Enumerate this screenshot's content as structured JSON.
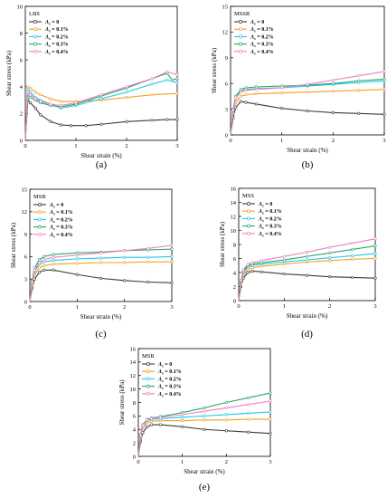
{
  "colors": {
    "0": "#3a3a3a",
    "0.1%": "#f2a020",
    "0.2%": "#22c7e6",
    "0.3%": "#27a86a",
    "0.4%": "#f07ec0"
  },
  "chart_data": [
    {
      "type": "line",
      "label": "LBS",
      "caption": "(a)",
      "xlabel": "Shear strain (%)",
      "ylabel": "Shear stress (kPa)",
      "xlim": [
        0,
        3
      ],
      "ylim": [
        0,
        10
      ],
      "xticks": [
        0,
        1,
        2,
        3
      ],
      "yticks": [
        0,
        2,
        4,
        6,
        8,
        10
      ],
      "series": [
        {
          "name": "A_s = 0",
          "key": "0",
          "x": [
            0,
            0.05,
            0.1,
            0.2,
            0.3,
            0.5,
            0.7,
            0.9,
            1.2,
            1.5,
            2,
            2.5,
            2.8,
            3
          ],
          "y": [
            0,
            3.0,
            2.8,
            2.4,
            1.9,
            1.4,
            1.15,
            1.1,
            1.1,
            1.2,
            1.4,
            1.5,
            1.55,
            1.55
          ]
        },
        {
          "name": "A_s = 0.1%",
          "key": "0.1%",
          "x": [
            0,
            0.05,
            0.1,
            0.2,
            0.3,
            0.5,
            0.7,
            1,
            1.5,
            2,
            2.5,
            3
          ],
          "y": [
            0,
            4.0,
            3.9,
            3.6,
            3.4,
            3.1,
            2.9,
            2.9,
            3.0,
            3.2,
            3.4,
            3.5
          ]
        },
        {
          "name": "A_s = 0.2%",
          "key": "0.2%",
          "x": [
            0,
            0.05,
            0.1,
            0.2,
            0.3,
            0.5,
            0.7,
            1,
            1.5,
            2,
            2.5,
            2.8,
            3
          ],
          "y": [
            0,
            3.8,
            3.6,
            3.2,
            3.0,
            2.7,
            2.4,
            2.6,
            3.1,
            3.6,
            4.2,
            4.5,
            4.3
          ]
        },
        {
          "name": "A_s = 0.3%",
          "key": "0.3%",
          "x": [
            0,
            0.05,
            0.1,
            0.2,
            0.3,
            0.5,
            0.7,
            1,
            1.5,
            2,
            2.5,
            2.8,
            2.9,
            3
          ],
          "y": [
            0,
            3.3,
            3.2,
            3.0,
            2.8,
            2.6,
            2.5,
            2.7,
            3.3,
            3.9,
            4.6,
            5.0,
            4.5,
            4.6
          ]
        },
        {
          "name": "A_s = 0.4%",
          "key": "0.4%",
          "x": [
            0,
            0.05,
            0.1,
            0.2,
            0.3,
            0.5,
            0.7,
            1,
            1.5,
            2,
            2.5,
            2.8,
            3
          ],
          "y": [
            0,
            3.6,
            3.4,
            3.1,
            2.9,
            2.7,
            2.6,
            2.8,
            3.4,
            4.0,
            4.6,
            5.1,
            4.9
          ]
        }
      ]
    },
    {
      "type": "line",
      "label": "MSSR",
      "caption": "(b)",
      "xlabel": "Shear strain (%)",
      "ylabel": "Shear stress (kPa)",
      "xlim": [
        0,
        3
      ],
      "ylim": [
        0,
        15
      ],
      "xticks": [
        0,
        1,
        2,
        3
      ],
      "yticks": [
        0,
        3,
        6,
        9,
        12,
        15
      ],
      "series": [
        {
          "name": "A_s = 0",
          "key": "0",
          "x": [
            0,
            0.05,
            0.1,
            0.2,
            0.3,
            0.5,
            1,
            1.5,
            2,
            2.5,
            3
          ],
          "y": [
            0,
            2.0,
            3.2,
            3.9,
            3.8,
            3.6,
            3.1,
            2.8,
            2.6,
            2.5,
            2.4
          ]
        },
        {
          "name": "A_s = 0.1%",
          "key": "0.1%",
          "x": [
            0,
            0.05,
            0.1,
            0.2,
            0.3,
            0.5,
            1,
            1.5,
            2,
            2.5,
            3
          ],
          "y": [
            0,
            2.5,
            3.8,
            4.5,
            4.7,
            4.8,
            4.9,
            5.0,
            5.1,
            5.2,
            5.3
          ]
        },
        {
          "name": "A_s = 0.2%",
          "key": "0.2%",
          "x": [
            0,
            0.05,
            0.1,
            0.2,
            0.3,
            0.5,
            1,
            1.5,
            2,
            2.5,
            3
          ],
          "y": [
            0,
            2.8,
            4.3,
            5.1,
            5.3,
            5.4,
            5.5,
            5.7,
            5.9,
            6.1,
            6.3
          ]
        },
        {
          "name": "A_s = 0.3%",
          "key": "0.3%",
          "x": [
            0,
            0.05,
            0.1,
            0.2,
            0.3,
            0.5,
            1,
            1.5,
            2,
            2.5,
            3
          ],
          "y": [
            0,
            3.0,
            4.5,
            5.3,
            5.5,
            5.6,
            5.7,
            5.8,
            6.0,
            6.3,
            6.5
          ]
        },
        {
          "name": "A_s = 0.4%",
          "key": "0.4%",
          "x": [
            0,
            0.05,
            0.1,
            0.2,
            0.3,
            0.5,
            1,
            1.5,
            2,
            2.5,
            3
          ],
          "y": [
            0,
            2.9,
            4.3,
            5.0,
            5.2,
            5.3,
            5.5,
            5.9,
            6.4,
            6.9,
            7.4
          ]
        }
      ]
    },
    {
      "type": "line",
      "label": "MSB",
      "caption": "(c)",
      "xlabel": "Shear strain (%)",
      "ylabel": "Shear stress (kPa)",
      "xlim": [
        0,
        3
      ],
      "ylim": [
        0,
        15
      ],
      "xticks": [
        0,
        1,
        2,
        3
      ],
      "yticks": [
        0,
        3,
        6,
        9,
        12,
        15
      ],
      "series": [
        {
          "name": "A_s = 0",
          "key": "0",
          "x": [
            0,
            0.05,
            0.1,
            0.2,
            0.3,
            0.5,
            1,
            1.5,
            2,
            2.5,
            3
          ],
          "y": [
            0,
            1.8,
            3.0,
            3.9,
            4.2,
            4.2,
            3.6,
            3.1,
            2.8,
            2.6,
            2.5
          ]
        },
        {
          "name": "A_s = 0.1%",
          "key": "0.1%",
          "x": [
            0,
            0.05,
            0.1,
            0.2,
            0.3,
            0.5,
            1,
            1.5,
            2,
            2.5,
            3
          ],
          "y": [
            0,
            2.2,
            3.6,
            4.5,
            4.8,
            5.0,
            5.1,
            5.2,
            5.2,
            5.3,
            5.3
          ]
        },
        {
          "name": "A_s = 0.2%",
          "key": "0.2%",
          "x": [
            0,
            0.05,
            0.1,
            0.2,
            0.3,
            0.5,
            1,
            1.5,
            2,
            2.5,
            3
          ],
          "y": [
            0,
            2.5,
            4.0,
            5.0,
            5.3,
            5.5,
            5.7,
            5.8,
            5.9,
            5.9,
            6.0
          ]
        },
        {
          "name": "A_s = 0.3%",
          "key": "0.3%",
          "x": [
            0,
            0.05,
            0.1,
            0.2,
            0.3,
            0.5,
            1,
            1.5,
            2,
            2.5,
            3
          ],
          "y": [
            0,
            2.8,
            4.5,
            5.6,
            6.0,
            6.3,
            6.5,
            6.6,
            6.8,
            6.9,
            7.0
          ]
        },
        {
          "name": "A_s = 0.4%",
          "key": "0.4%",
          "x": [
            0,
            0.05,
            0.1,
            0.2,
            0.3,
            0.5,
            1,
            1.5,
            2,
            2.5,
            3
          ],
          "y": [
            0,
            2.6,
            4.2,
            5.2,
            5.6,
            5.9,
            6.2,
            6.5,
            6.8,
            7.1,
            7.5
          ]
        }
      ]
    },
    {
      "type": "line",
      "label": "MSS",
      "caption": "(d)",
      "xlabel": "Shear strain (%)",
      "ylabel": "Shear stress (kPa)",
      "xlim": [
        0,
        3
      ],
      "ylim": [
        0,
        16
      ],
      "xticks": [
        0,
        1,
        2,
        3
      ],
      "yticks": [
        0,
        2,
        4,
        6,
        8,
        10,
        12,
        14,
        16
      ],
      "series": [
        {
          "name": "A_s = 0",
          "key": "0",
          "x": [
            0,
            0.05,
            0.1,
            0.2,
            0.3,
            0.5,
            1,
            1.5,
            2,
            2.5,
            3
          ],
          "y": [
            0,
            2.0,
            3.2,
            4.0,
            4.2,
            4.1,
            3.8,
            3.6,
            3.4,
            3.3,
            3.2
          ]
        },
        {
          "name": "A_s = 0.1%",
          "key": "0.1%",
          "x": [
            0,
            0.05,
            0.1,
            0.2,
            0.3,
            0.5,
            1,
            1.5,
            2,
            2.5,
            3
          ],
          "y": [
            0,
            2.3,
            3.6,
            4.4,
            4.7,
            4.9,
            5.2,
            5.5,
            5.7,
            5.9,
            6.0
          ]
        },
        {
          "name": "A_s = 0.2%",
          "key": "0.2%",
          "x": [
            0,
            0.05,
            0.1,
            0.2,
            0.3,
            0.5,
            1,
            1.5,
            2,
            2.5,
            3
          ],
          "y": [
            0,
            2.6,
            4.0,
            4.8,
            5.0,
            5.2,
            5.5,
            5.8,
            6.1,
            6.4,
            6.7
          ]
        },
        {
          "name": "A_s = 0.3%",
          "key": "0.3%",
          "x": [
            0,
            0.05,
            0.1,
            0.2,
            0.3,
            0.5,
            1,
            1.5,
            2,
            2.5,
            3
          ],
          "y": [
            0,
            2.8,
            4.2,
            5.0,
            5.2,
            5.4,
            5.8,
            6.3,
            6.8,
            7.3,
            7.8
          ]
        },
        {
          "name": "A_s = 0.4%",
          "key": "0.4%",
          "x": [
            0,
            0.05,
            0.1,
            0.2,
            0.3,
            0.5,
            1,
            1.5,
            2,
            2.5,
            3
          ],
          "y": [
            0,
            2.9,
            4.4,
            5.2,
            5.4,
            5.7,
            6.3,
            6.9,
            7.6,
            8.2,
            8.8
          ]
        }
      ]
    },
    {
      "type": "line",
      "label": "MSR",
      "caption": "(e)",
      "xlabel": "Shear strain (%)",
      "ylabel": "Shear stress (kPa)",
      "xlim": [
        0,
        3
      ],
      "ylim": [
        0,
        16
      ],
      "xticks": [
        0,
        1,
        2,
        3
      ],
      "yticks": [
        0,
        2,
        4,
        6,
        8,
        10,
        12,
        14,
        16
      ],
      "series": [
        {
          "name": "A_s = 0",
          "key": "0",
          "x": [
            0,
            0.05,
            0.1,
            0.2,
            0.3,
            0.5,
            1,
            1.5,
            2,
            2.5,
            3
          ],
          "y": [
            0,
            2.2,
            3.5,
            4.4,
            4.7,
            4.7,
            4.4,
            4.0,
            3.8,
            3.6,
            3.4
          ]
        },
        {
          "name": "A_s = 0.1%",
          "key": "0.1%",
          "x": [
            0,
            0.05,
            0.1,
            0.2,
            0.3,
            0.5,
            1,
            1.5,
            2,
            2.5,
            3
          ],
          "y": [
            0,
            2.8,
            4.2,
            5.0,
            5.2,
            5.3,
            5.3,
            5.4,
            5.4,
            5.5,
            5.5
          ]
        },
        {
          "name": "A_s = 0.2%",
          "key": "0.2%",
          "x": [
            0,
            0.05,
            0.1,
            0.2,
            0.3,
            0.5,
            1,
            1.5,
            2,
            2.5,
            3
          ],
          "y": [
            0,
            3.0,
            4.5,
            5.3,
            5.5,
            5.6,
            5.8,
            6.0,
            6.2,
            6.4,
            6.6
          ]
        },
        {
          "name": "A_s = 0.3%",
          "key": "0.3%",
          "x": [
            0,
            0.05,
            0.1,
            0.2,
            0.3,
            0.5,
            1,
            1.5,
            2,
            2.5,
            3
          ],
          "y": [
            0,
            3.2,
            4.7,
            5.5,
            5.7,
            5.9,
            6.5,
            7.2,
            8.0,
            8.7,
            9.4
          ]
        },
        {
          "name": "A_s = 0.4%",
          "key": "0.4%",
          "x": [
            0,
            0.05,
            0.1,
            0.2,
            0.3,
            0.5,
            1,
            1.5,
            2,
            2.5,
            3
          ],
          "y": [
            0,
            3.1,
            4.6,
            5.4,
            5.6,
            5.8,
            6.2,
            6.7,
            7.2,
            7.7,
            8.2
          ]
        }
      ]
    }
  ]
}
